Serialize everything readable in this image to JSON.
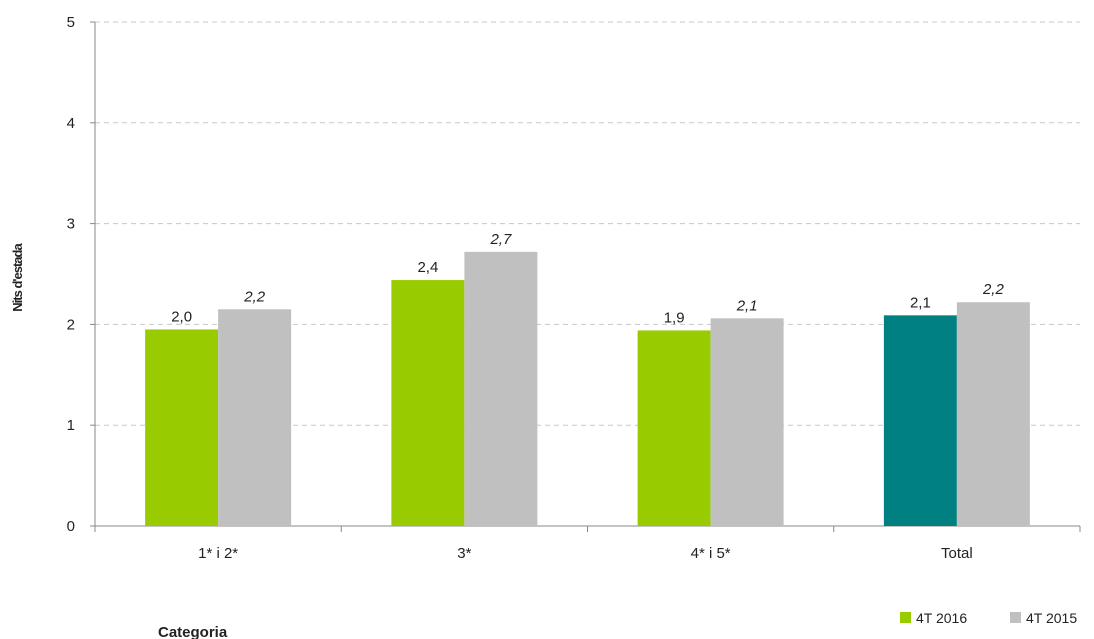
{
  "chart_data": {
    "type": "bar",
    "title": "",
    "xlabel": "Categoria",
    "ylabel": "Nits d'estada",
    "ylim": [
      0,
      5
    ],
    "yticks": [
      0,
      1,
      2,
      3,
      4,
      5
    ],
    "grid": true,
    "legend_position": "bottom-right",
    "categories": [
      "1* i 2*",
      "3*",
      "4* i 5*",
      "Total"
    ],
    "series": [
      {
        "name": "4T 2016",
        "values": [
          1.95,
          2.44,
          1.94,
          2.09
        ],
        "labels": [
          "2,0",
          "2,4",
          "1,9",
          "2,1"
        ],
        "color": "#99cc00",
        "point_colors": [
          "#99cc00",
          "#99cc00",
          "#99cc00",
          "#008080"
        ],
        "label_style": "normal"
      },
      {
        "name": "4T 2015",
        "values": [
          2.15,
          2.72,
          2.06,
          2.22
        ],
        "labels": [
          "2,2",
          "2,7",
          "2,1",
          "2,2"
        ],
        "color": "#c0c0c0",
        "point_colors": [
          "#c0c0c0",
          "#c0c0c0",
          "#c0c0c0",
          "#c0c0c0"
        ],
        "label_style": "italic"
      }
    ]
  }
}
